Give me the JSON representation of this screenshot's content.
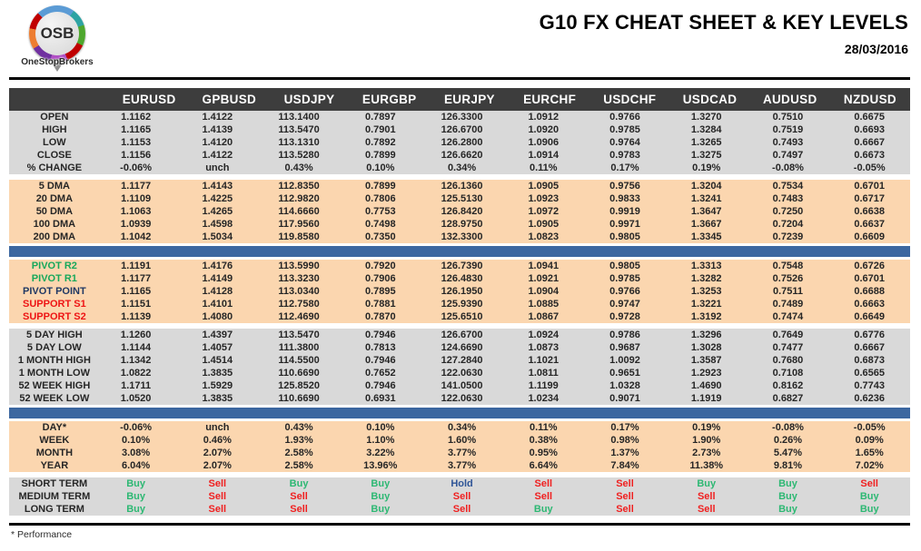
{
  "header": {
    "logo": {
      "text": "OSB",
      "subtext": "OneStopBrokers"
    },
    "title": "G10 FX CHEAT SHEET & KEY LEVELS",
    "date": "28/03/2016"
  },
  "colors": {
    "header_bar": "#3d3d3d",
    "gray_row": "#d9d9d9",
    "peach_row": "#fbd6af",
    "divider_blue": "#3c67a0",
    "buy_green": "#2db873",
    "sell_red": "#f02020",
    "hold_blue": "#2f5597",
    "pivot_green": "#16a85a",
    "pivot_navy": "#1f3864",
    "support_red": "#ee1414"
  },
  "table": {
    "columns": [
      "EURUSD",
      "GPBUSD",
      "USDJPY",
      "EURGBP",
      "EURJPY",
      "EURCHF",
      "USDCHF",
      "USDCAD",
      "AUDUSD",
      "NZDUSD"
    ],
    "sections": [
      {
        "style": "gray",
        "rows": [
          {
            "label": "OPEN",
            "values": [
              "1.1162",
              "1.4122",
              "113.1400",
              "0.7897",
              "126.3300",
              "1.0912",
              "0.9766",
              "1.3270",
              "0.7510",
              "0.6675"
            ]
          },
          {
            "label": "HIGH",
            "values": [
              "1.1165",
              "1.4139",
              "113.5470",
              "0.7901",
              "126.6700",
              "1.0920",
              "0.9785",
              "1.3284",
              "0.7519",
              "0.6693"
            ]
          },
          {
            "label": "LOW",
            "values": [
              "1.1153",
              "1.4120",
              "113.1310",
              "0.7892",
              "126.2800",
              "1.0906",
              "0.9764",
              "1.3265",
              "0.7493",
              "0.6667"
            ]
          },
          {
            "label": "CLOSE",
            "values": [
              "1.1156",
              "1.4122",
              "113.5280",
              "0.7899",
              "126.6620",
              "1.0914",
              "0.9783",
              "1.3275",
              "0.7497",
              "0.6673"
            ]
          },
          {
            "label": "% CHANGE",
            "values": [
              "-0.06%",
              "unch",
              "0.43%",
              "0.10%",
              "0.34%",
              "0.11%",
              "0.17%",
              "0.19%",
              "-0.08%",
              "-0.05%"
            ]
          }
        ]
      },
      {
        "style": "peach",
        "rows": [
          {
            "label": "5 DMA",
            "values": [
              "1.1177",
              "1.4143",
              "112.8350",
              "0.7899",
              "126.1360",
              "1.0905",
              "0.9756",
              "1.3204",
              "0.7534",
              "0.6701"
            ]
          },
          {
            "label": "20 DMA",
            "values": [
              "1.1109",
              "1.4225",
              "112.9820",
              "0.7806",
              "125.5130",
              "1.0923",
              "0.9833",
              "1.3241",
              "0.7483",
              "0.6717"
            ]
          },
          {
            "label": "50 DMA",
            "values": [
              "1.1063",
              "1.4265",
              "114.6660",
              "0.7753",
              "126.8420",
              "1.0972",
              "0.9919",
              "1.3647",
              "0.7250",
              "0.6638"
            ]
          },
          {
            "label": "100 DMA",
            "values": [
              "1.0939",
              "1.4598",
              "117.9560",
              "0.7498",
              "128.9750",
              "1.0905",
              "0.9971",
              "1.3667",
              "0.7204",
              "0.6637"
            ]
          },
          {
            "label": "200 DMA",
            "values": [
              "1.1042",
              "1.5034",
              "119.8580",
              "0.7350",
              "132.3300",
              "1.0823",
              "0.9805",
              "1.3345",
              "0.7239",
              "0.6609"
            ]
          }
        ]
      },
      {
        "type": "divider"
      },
      {
        "style": "peach",
        "rows": [
          {
            "label": "PIVOT R2",
            "color": "green",
            "values": [
              "1.1191",
              "1.4176",
              "113.5990",
              "0.7920",
              "126.7390",
              "1.0941",
              "0.9805",
              "1.3313",
              "0.7548",
              "0.6726"
            ]
          },
          {
            "label": "PIVOT R1",
            "color": "green",
            "values": [
              "1.1177",
              "1.4149",
              "113.3230",
              "0.7906",
              "126.4830",
              "1.0921",
              "0.9785",
              "1.3282",
              "0.7526",
              "0.6701"
            ]
          },
          {
            "label": "PIVOT POINT",
            "color": "navy",
            "values": [
              "1.1165",
              "1.4128",
              "113.0340",
              "0.7895",
              "126.1950",
              "1.0904",
              "0.9766",
              "1.3253",
              "0.7511",
              "0.6688"
            ]
          },
          {
            "label": "SUPPORT S1",
            "color": "red",
            "values": [
              "1.1151",
              "1.4101",
              "112.7580",
              "0.7881",
              "125.9390",
              "1.0885",
              "0.9747",
              "1.3221",
              "0.7489",
              "0.6663"
            ]
          },
          {
            "label": "SUPPORT S2",
            "color": "red",
            "values": [
              "1.1139",
              "1.4080",
              "112.4690",
              "0.7870",
              "125.6510",
              "1.0867",
              "0.9728",
              "1.3192",
              "0.7474",
              "0.6649"
            ]
          }
        ]
      },
      {
        "style": "gray",
        "rows": [
          {
            "label": "5 DAY HIGH",
            "values": [
              "1.1260",
              "1.4397",
              "113.5470",
              "0.7946",
              "126.6700",
              "1.0924",
              "0.9786",
              "1.3296",
              "0.7649",
              "0.6776"
            ]
          },
          {
            "label": "5 DAY LOW",
            "values": [
              "1.1144",
              "1.4057",
              "111.3800",
              "0.7813",
              "124.6690",
              "1.0873",
              "0.9687",
              "1.3028",
              "0.7477",
              "0.6667"
            ]
          },
          {
            "label": "1 MONTH HIGH",
            "values": [
              "1.1342",
              "1.4514",
              "114.5500",
              "0.7946",
              "127.2840",
              "1.1021",
              "1.0092",
              "1.3587",
              "0.7680",
              "0.6873"
            ]
          },
          {
            "label": "1 MONTH LOW",
            "values": [
              "1.0822",
              "1.3835",
              "110.6690",
              "0.7652",
              "122.0630",
              "1.0811",
              "0.9651",
              "1.2923",
              "0.7108",
              "0.6565"
            ]
          },
          {
            "label": "52 WEEK HIGH",
            "values": [
              "1.1711",
              "1.5929",
              "125.8520",
              "0.7946",
              "141.0500",
              "1.1199",
              "1.0328",
              "1.4690",
              "0.8162",
              "0.7743"
            ]
          },
          {
            "label": "52 WEEK LOW",
            "values": [
              "1.0520",
              "1.3835",
              "110.6690",
              "0.6931",
              "122.0630",
              "1.0234",
              "0.9071",
              "1.1919",
              "0.6827",
              "0.6236"
            ]
          }
        ]
      },
      {
        "type": "divider"
      },
      {
        "style": "peach",
        "rows": [
          {
            "label": "DAY*",
            "values": [
              "-0.06%",
              "unch",
              "0.43%",
              "0.10%",
              "0.34%",
              "0.11%",
              "0.17%",
              "0.19%",
              "-0.08%",
              "-0.05%"
            ]
          },
          {
            "label": "WEEK",
            "values": [
              "0.10%",
              "0.46%",
              "1.93%",
              "1.10%",
              "1.60%",
              "0.38%",
              "0.98%",
              "1.90%",
              "0.26%",
              "0.09%"
            ]
          },
          {
            "label": "MONTH",
            "values": [
              "3.08%",
              "2.07%",
              "2.58%",
              "3.22%",
              "3.77%",
              "0.95%",
              "1.37%",
              "2.73%",
              "5.47%",
              "1.65%"
            ]
          },
          {
            "label": "YEAR",
            "values": [
              "6.04%",
              "2.07%",
              "2.58%",
              "13.96%",
              "3.77%",
              "6.64%",
              "7.84%",
              "11.38%",
              "9.81%",
              "7.02%"
            ]
          }
        ]
      },
      {
        "style": "gray",
        "signals": true,
        "rows": [
          {
            "label": "SHORT TERM",
            "values": [
              "Buy",
              "Sell",
              "Buy",
              "Buy",
              "Hold",
              "Sell",
              "Sell",
              "Buy",
              "Buy",
              "Sell"
            ]
          },
          {
            "label": "MEDIUM TERM",
            "values": [
              "Buy",
              "Sell",
              "Sell",
              "Buy",
              "Sell",
              "Sell",
              "Sell",
              "Sell",
              "Buy",
              "Buy"
            ]
          },
          {
            "label": "LONG TERM",
            "values": [
              "Buy",
              "Sell",
              "Sell",
              "Buy",
              "Sell",
              "Buy",
              "Sell",
              "Sell",
              "Buy",
              "Buy"
            ]
          }
        ]
      }
    ]
  },
  "footer": {
    "note": "* Performance"
  }
}
